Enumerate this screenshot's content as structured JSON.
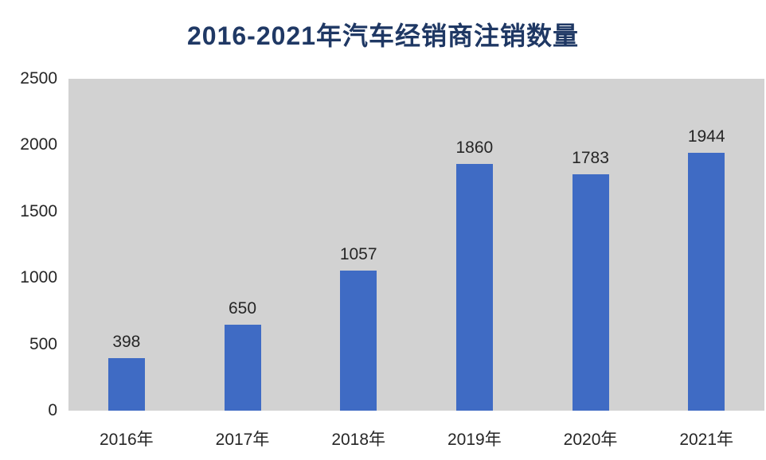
{
  "chart_data": {
    "type": "bar",
    "title": "2016-2021年汽车经销商注销数量",
    "categories": [
      "2016年",
      "2017年",
      "2018年",
      "2019年",
      "2020年",
      "2021年"
    ],
    "values": [
      398,
      650,
      1057,
      1860,
      1783,
      1944
    ],
    "xlabel": "",
    "ylabel": "",
    "ylim": [
      0,
      2500
    ],
    "yticks": [
      0,
      500,
      1000,
      1500,
      2000,
      2500
    ],
    "grid": false,
    "legend": "none",
    "colors": {
      "bar": "#3F6BC4",
      "plot_background": "#D2D2D2",
      "title": "#1F3864",
      "tick_text": "#262626",
      "page_background": "#FFFFFF"
    }
  }
}
